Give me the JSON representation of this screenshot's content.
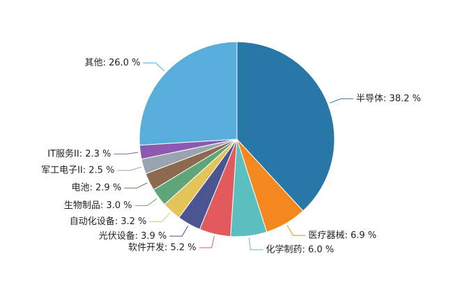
{
  "chart_data": {
    "type": "pie",
    "values": [
      38.2,
      6.9,
      6.0,
      5.2,
      3.9,
      3.2,
      3.0,
      2.9,
      2.5,
      2.3,
      26.0
    ],
    "value_labels": [
      "半导体: 38.2 %",
      "医疗器械: 6.9 %",
      "化学制药: 6.0 %",
      "软件开发: 5.2 %",
      "光伏设备: 3.9 %",
      "自动化设备: 3.2 %",
      "生物制品: 3.0 %",
      "电池: 2.9 %",
      "军工电子II: 2.5 %",
      "IT服务II: 2.3 %",
      "其他: 26.0 %"
    ],
    "colors": [
      "#2778a6",
      "#f5871f",
      "#5cbfbf",
      "#e05a5e",
      "#4a5591",
      "#e3c45a",
      "#5ea57a",
      "#8c6a50",
      "#9aa4ae",
      "#8b5ab0",
      "#57aedb"
    ]
  }
}
